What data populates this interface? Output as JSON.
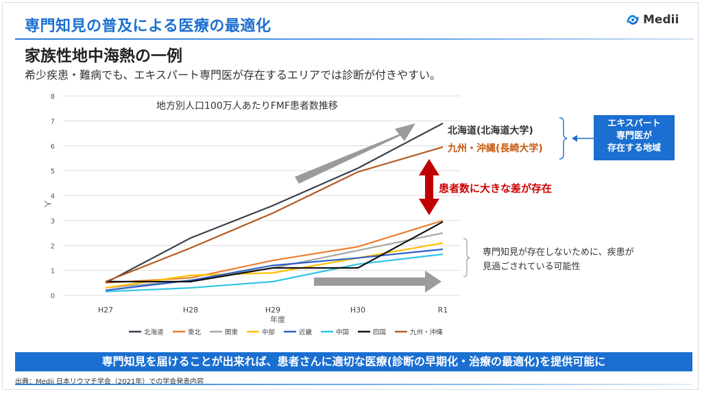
{
  "slide": {
    "title": "専門知見の普及による医療の最適化",
    "subtitle": "家族性地中海熱の一例",
    "lead": "希少疾患・難病でも、エキスパート専門医が存在するエリアでは診断が付きやすい。",
    "logo_text": "Medii",
    "banner": "専門知見を届けることが出来れば、患者さんに適切な医療(診断の早期化・治療の最適化)を提供可能に",
    "source": "出典：Medii 日本リウマチ学会（2021年）での学会発表内容",
    "colors": {
      "accent": "#1a6fd1",
      "alert": "#cc0000"
    }
  },
  "annotations": {
    "hokkaido_label": "北海道(北海道大学)",
    "kyushu_label": "九州・沖縄(長崎大学)",
    "expert_box_lines": [
      "エキスパート",
      "専門医が",
      "存在する地域"
    ],
    "difference_label": "患者数に大きな差が存在",
    "note_lines": [
      "専門知見が存在しないために、疾患が",
      "見過ごされている可能性"
    ]
  },
  "chart_data": {
    "type": "line",
    "title": "地方別人口100万人あたりFMF患者数推移",
    "xlabel": "年度",
    "ylabel": "人",
    "categories": [
      "H27",
      "H28",
      "H29",
      "H30",
      "R1"
    ],
    "ylim": [
      0,
      8
    ],
    "yticks": [
      0,
      1,
      2,
      3,
      4,
      5,
      6,
      7,
      8
    ],
    "grid": true,
    "legend_position": "bottom",
    "series": [
      {
        "name": "北海道",
        "color": "#3a3f4a",
        "values": [
          0.5,
          2.3,
          3.6,
          5.1,
          6.9
        ]
      },
      {
        "name": "東北",
        "color": "#ed7d31",
        "values": [
          0.5,
          0.7,
          1.4,
          1.95,
          3.0
        ]
      },
      {
        "name": "関東",
        "color": "#a5a5a5",
        "values": [
          0.3,
          0.6,
          1.1,
          1.8,
          2.5
        ]
      },
      {
        "name": "中部",
        "color": "#ffc000",
        "values": [
          0.3,
          0.8,
          0.9,
          1.5,
          2.1
        ]
      },
      {
        "name": "近畿",
        "color": "#2f5fc4",
        "values": [
          0.2,
          0.6,
          1.2,
          1.5,
          1.85
        ]
      },
      {
        "name": "中国",
        "color": "#2ec4e8",
        "values": [
          0.15,
          0.3,
          0.55,
          1.25,
          1.65
        ]
      },
      {
        "name": "四国",
        "color": "#111111",
        "values": [
          0.55,
          0.55,
          1.1,
          1.1,
          2.95
        ]
      },
      {
        "name": "九州・沖縄",
        "color": "#b35a22",
        "values": [
          0.55,
          1.9,
          3.3,
          4.95,
          5.95
        ]
      }
    ]
  }
}
